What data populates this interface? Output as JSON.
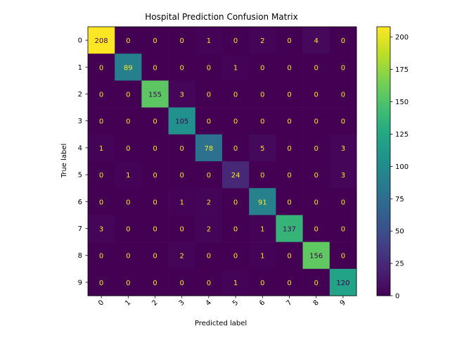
{
  "chart_data": {
    "type": "heatmap",
    "title": "Hospital Prediction Confusion Matrix",
    "xlabel": "Predicted label",
    "ylabel": "True label",
    "x_tick_labels": [
      "0",
      "1",
      "2",
      "3",
      "4",
      "5",
      "6",
      "7",
      "8",
      "9"
    ],
    "y_tick_labels": [
      "0",
      "1",
      "2",
      "3",
      "4",
      "5",
      "6",
      "7",
      "8",
      "9"
    ],
    "matrix": [
      [
        208,
        0,
        0,
        0,
        1,
        0,
        2,
        0,
        4,
        0
      ],
      [
        0,
        89,
        0,
        0,
        0,
        1,
        0,
        0,
        0,
        0
      ],
      [
        0,
        0,
        155,
        3,
        0,
        0,
        0,
        0,
        0,
        0
      ],
      [
        0,
        0,
        0,
        105,
        0,
        0,
        0,
        0,
        0,
        0
      ],
      [
        1,
        0,
        0,
        0,
        78,
        0,
        5,
        0,
        0,
        3
      ],
      [
        0,
        1,
        0,
        0,
        0,
        24,
        0,
        0,
        0,
        3
      ],
      [
        0,
        0,
        0,
        1,
        2,
        0,
        91,
        0,
        0,
        0
      ],
      [
        3,
        0,
        0,
        0,
        2,
        0,
        1,
        137,
        0,
        0
      ],
      [
        0,
        0,
        0,
        2,
        0,
        0,
        1,
        0,
        156,
        0
      ],
      [
        0,
        0,
        0,
        0,
        0,
        1,
        0,
        0,
        0,
        120
      ]
    ],
    "colormap": "viridis",
    "vmin": 0,
    "vmax": 208,
    "colorbar_ticks": [
      0,
      25,
      50,
      75,
      100,
      125,
      150,
      175,
      200
    ],
    "x_tick_rotation_deg": 45
  }
}
